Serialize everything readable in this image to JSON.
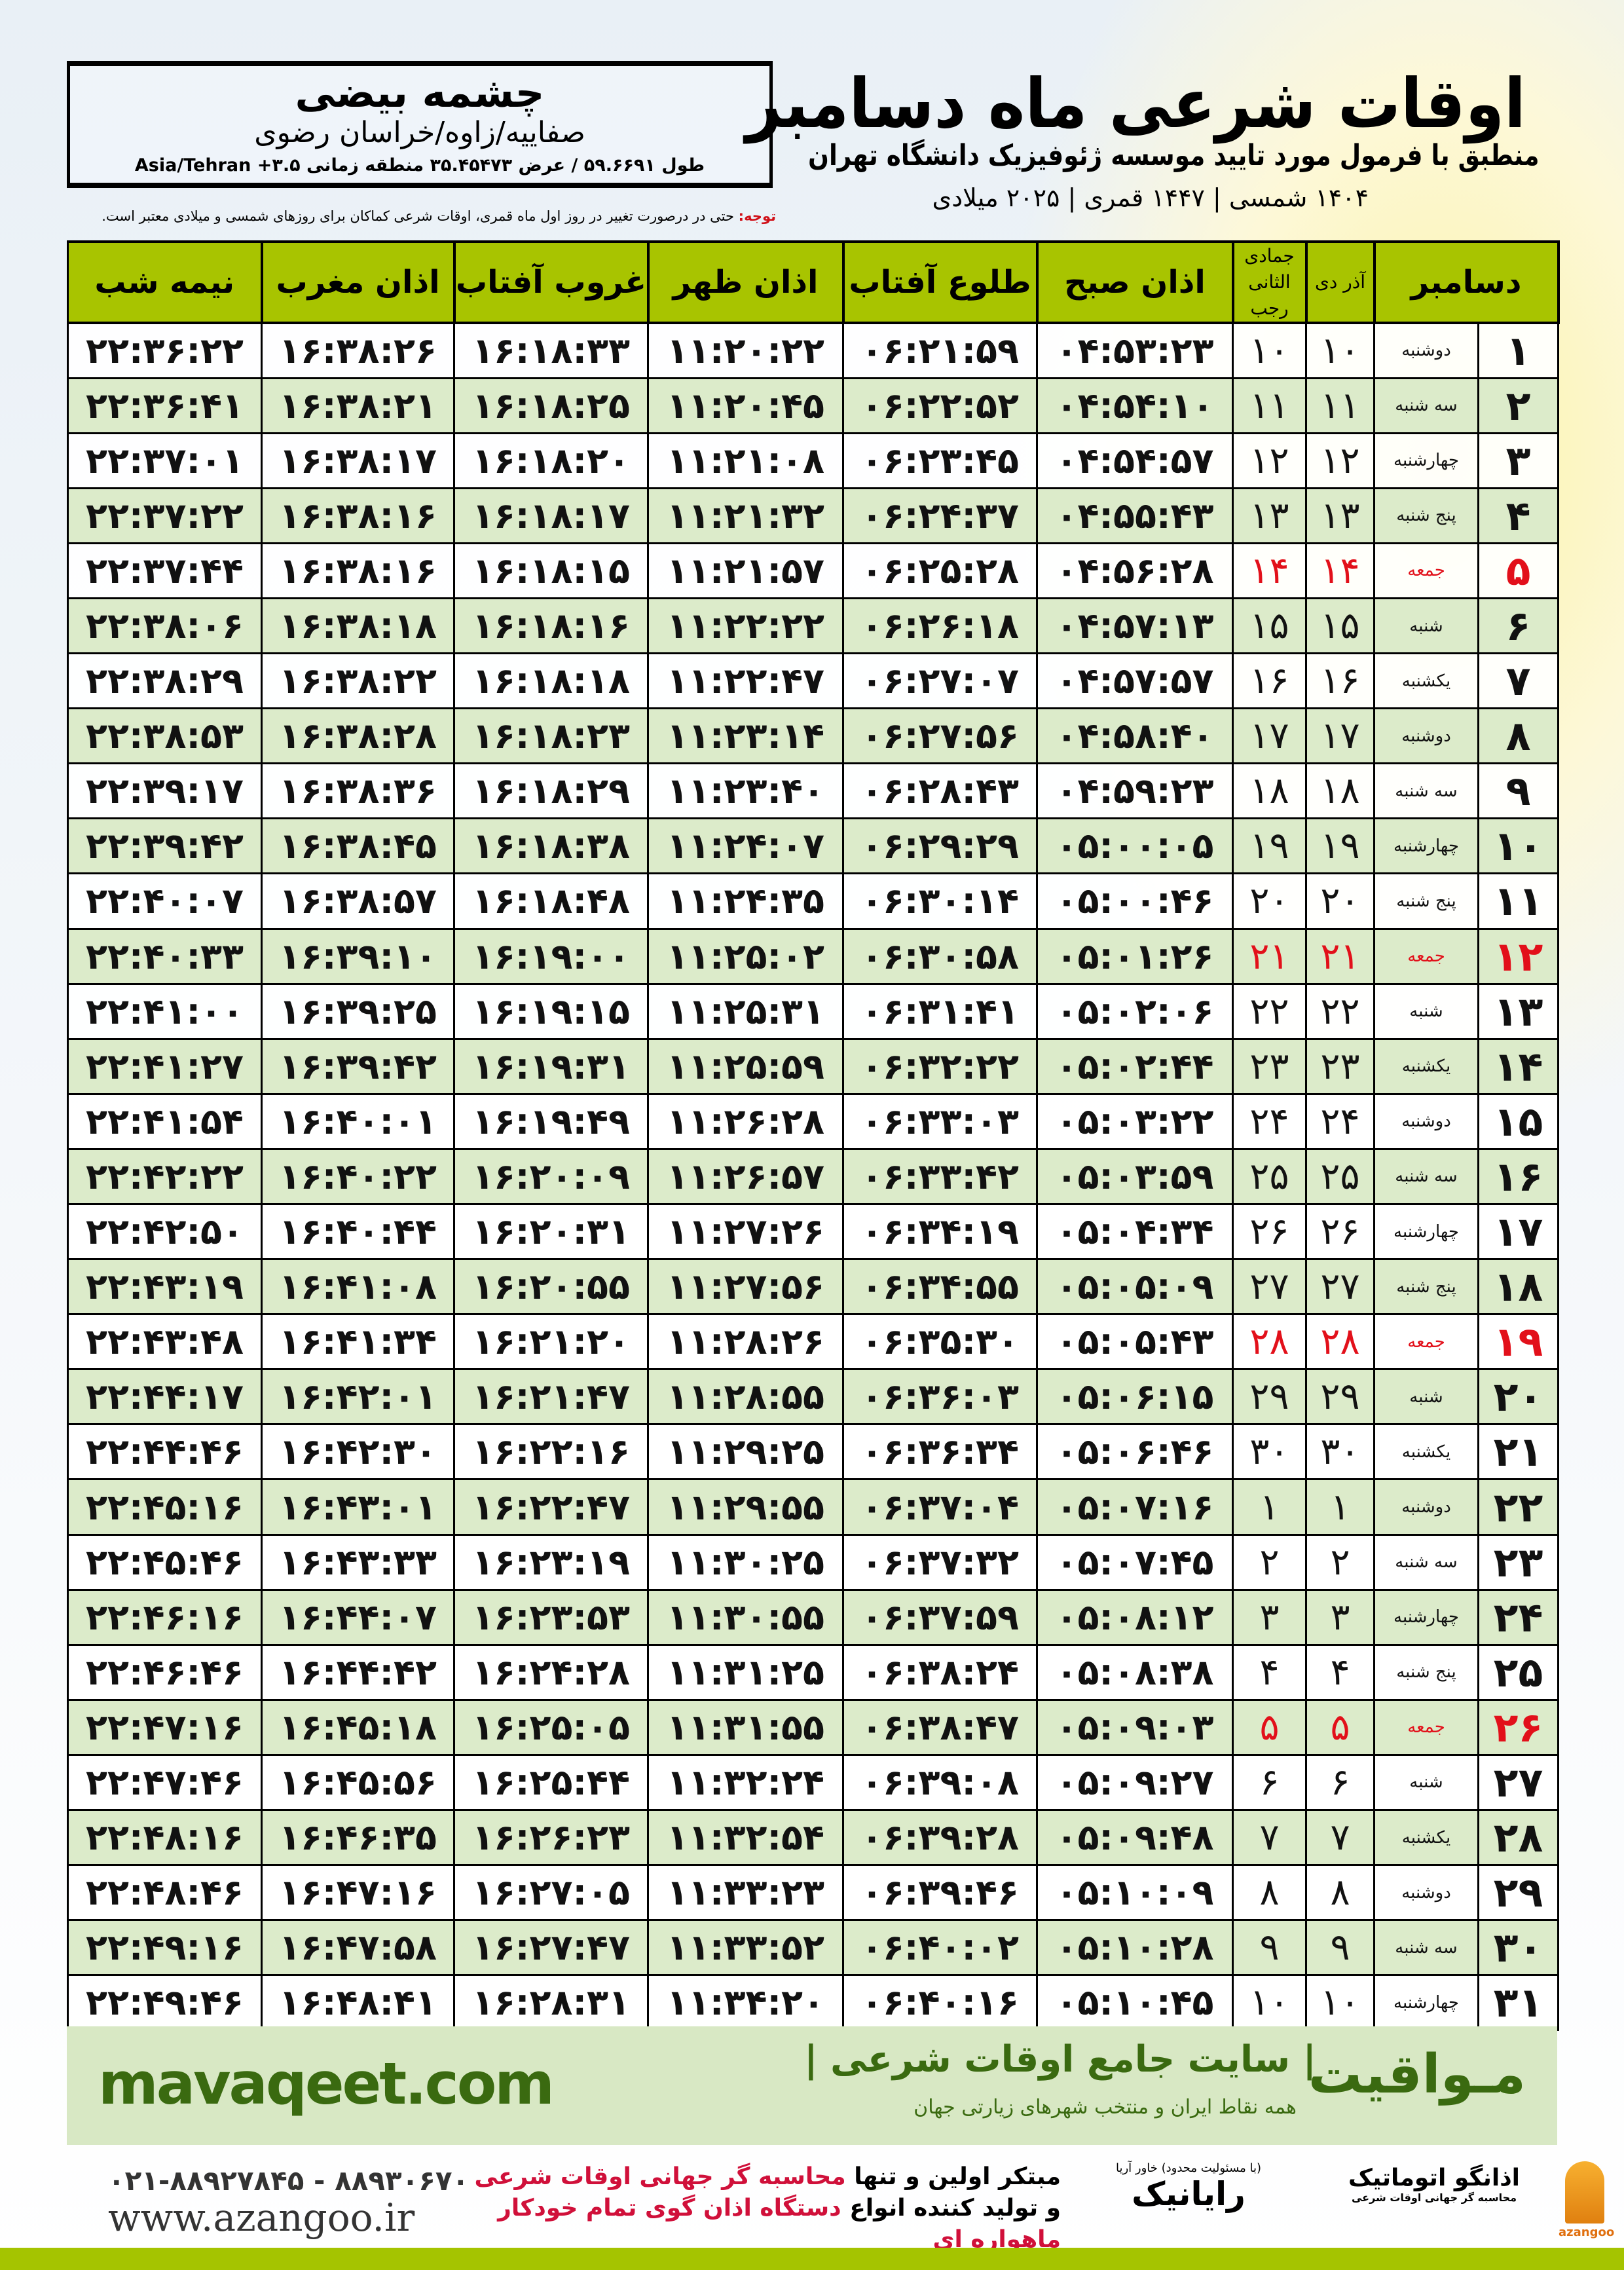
{
  "location": {
    "name": "چشمه بیضی",
    "province": "صفاییه/زاوه/خراسان رضوی",
    "coords": "طول ۵۹.۶۶۹۱ / عرض ۳۵.۴۵۴۷۳ منطقه زمانی ۳.۵+ Asia/Tehran"
  },
  "header": {
    "title": "اوقات شرعی ماه دسامبر",
    "subtitle": "منطبق با فرمول مورد تایید موسسه ژئوفیزیک دانشگاه تهران",
    "dates": "۱۴۰۴ شمسی | ۱۴۴۷ قمری | ۲۰۲۵ میلادی",
    "note_label": "توجه:",
    "note_text": " حتی در درصورت تغییر در روز اول ماه قمری، اوقات شرعی کماکان برای روزهای شمسی و میلادی معتبر است."
  },
  "columns": {
    "month": "دسامبر",
    "solar": "آذر  دی",
    "solar2": "دی",
    "hijri": "جمادی الثانی",
    "hijri2": "رجب",
    "fajr": "اذان صبح",
    "sunrise": "طلوع آفتاب",
    "dhuhr": "اذان ظهر",
    "sunset": "غروب آفتاب",
    "maghrib": "اذان مغرب",
    "midnight": "نیمه شب"
  },
  "colors": {
    "header_green": "#a8c400",
    "row_alt": "#dcebca",
    "friday_red": "#e2101a",
    "band": "#d8e8c4",
    "brand_green": "#3a6a10"
  },
  "rows": [
    [
      "۱",
      "دوشنبه",
      "۱۰",
      "۱۰",
      "۰۴:۵۳:۲۳",
      "۰۶:۲۱:۵۹",
      "۱۱:۲۰:۲۲",
      "۱۶:۱۸:۳۳",
      "۱۶:۳۸:۲۶",
      "۲۲:۳۶:۲۲"
    ],
    [
      "۲",
      "سه شنبه",
      "۱۱",
      "۱۱",
      "۰۴:۵۴:۱۰",
      "۰۶:۲۲:۵۲",
      "۱۱:۲۰:۴۵",
      "۱۶:۱۸:۲۵",
      "۱۶:۳۸:۲۱",
      "۲۲:۳۶:۴۱"
    ],
    [
      "۳",
      "چهارشنبه",
      "۱۲",
      "۱۲",
      "۰۴:۵۴:۵۷",
      "۰۶:۲۳:۴۵",
      "۱۱:۲۱:۰۸",
      "۱۶:۱۸:۲۰",
      "۱۶:۳۸:۱۷",
      "۲۲:۳۷:۰۱"
    ],
    [
      "۴",
      "پنج شنبه",
      "۱۳",
      "۱۳",
      "۰۴:۵۵:۴۳",
      "۰۶:۲۴:۳۷",
      "۱۱:۲۱:۳۲",
      "۱۶:۱۸:۱۷",
      "۱۶:۳۸:۱۶",
      "۲۲:۳۷:۲۲"
    ],
    [
      "۵",
      "جمعه",
      "۱۴",
      "۱۴",
      "۰۴:۵۶:۲۸",
      "۰۶:۲۵:۲۸",
      "۱۱:۲۱:۵۷",
      "۱۶:۱۸:۱۵",
      "۱۶:۳۸:۱۶",
      "۲۲:۳۷:۴۴"
    ],
    [
      "۶",
      "شنبه",
      "۱۵",
      "۱۵",
      "۰۴:۵۷:۱۳",
      "۰۶:۲۶:۱۸",
      "۱۱:۲۲:۲۲",
      "۱۶:۱۸:۱۶",
      "۱۶:۳۸:۱۸",
      "۲۲:۳۸:۰۶"
    ],
    [
      "۷",
      "یکشنبه",
      "۱۶",
      "۱۶",
      "۰۴:۵۷:۵۷",
      "۰۶:۲۷:۰۷",
      "۱۱:۲۲:۴۷",
      "۱۶:۱۸:۱۸",
      "۱۶:۳۸:۲۲",
      "۲۲:۳۸:۲۹"
    ],
    [
      "۸",
      "دوشنبه",
      "۱۷",
      "۱۷",
      "۰۴:۵۸:۴۰",
      "۰۶:۲۷:۵۶",
      "۱۱:۲۳:۱۴",
      "۱۶:۱۸:۲۳",
      "۱۶:۳۸:۲۸",
      "۲۲:۳۸:۵۳"
    ],
    [
      "۹",
      "سه شنبه",
      "۱۸",
      "۱۸",
      "۰۴:۵۹:۲۳",
      "۰۶:۲۸:۴۳",
      "۱۱:۲۳:۴۰",
      "۱۶:۱۸:۲۹",
      "۱۶:۳۸:۳۶",
      "۲۲:۳۹:۱۷"
    ],
    [
      "۱۰",
      "چهارشنبه",
      "۱۹",
      "۱۹",
      "۰۵:۰۰:۰۵",
      "۰۶:۲۹:۲۹",
      "۱۱:۲۴:۰۷",
      "۱۶:۱۸:۳۸",
      "۱۶:۳۸:۴۵",
      "۲۲:۳۹:۴۲"
    ],
    [
      "۱۱",
      "پنج شنبه",
      "۲۰",
      "۲۰",
      "۰۵:۰۰:۴۶",
      "۰۶:۳۰:۱۴",
      "۱۱:۲۴:۳۵",
      "۱۶:۱۸:۴۸",
      "۱۶:۳۸:۵۷",
      "۲۲:۴۰:۰۷"
    ],
    [
      "۱۲",
      "جمعه",
      "۲۱",
      "۲۱",
      "۰۵:۰۱:۲۶",
      "۰۶:۳۰:۵۸",
      "۱۱:۲۵:۰۲",
      "۱۶:۱۹:۰۰",
      "۱۶:۳۹:۱۰",
      "۲۲:۴۰:۳۳"
    ],
    [
      "۱۳",
      "شنبه",
      "۲۲",
      "۲۲",
      "۰۵:۰۲:۰۶",
      "۰۶:۳۱:۴۱",
      "۱۱:۲۵:۳۱",
      "۱۶:۱۹:۱۵",
      "۱۶:۳۹:۲۵",
      "۲۲:۴۱:۰۰"
    ],
    [
      "۱۴",
      "یکشنبه",
      "۲۳",
      "۲۳",
      "۰۵:۰۲:۴۴",
      "۰۶:۳۲:۲۲",
      "۱۱:۲۵:۵۹",
      "۱۶:۱۹:۳۱",
      "۱۶:۳۹:۴۲",
      "۲۲:۴۱:۲۷"
    ],
    [
      "۱۵",
      "دوشنبه",
      "۲۴",
      "۲۴",
      "۰۵:۰۳:۲۲",
      "۰۶:۳۳:۰۳",
      "۱۱:۲۶:۲۸",
      "۱۶:۱۹:۴۹",
      "۱۶:۴۰:۰۱",
      "۲۲:۴۱:۵۴"
    ],
    [
      "۱۶",
      "سه شنبه",
      "۲۵",
      "۲۵",
      "۰۵:۰۳:۵۹",
      "۰۶:۳۳:۴۲",
      "۱۱:۲۶:۵۷",
      "۱۶:۲۰:۰۹",
      "۱۶:۴۰:۲۲",
      "۲۲:۴۲:۲۲"
    ],
    [
      "۱۷",
      "چهارشنبه",
      "۲۶",
      "۲۶",
      "۰۵:۰۴:۳۴",
      "۰۶:۳۴:۱۹",
      "۱۱:۲۷:۲۶",
      "۱۶:۲۰:۳۱",
      "۱۶:۴۰:۴۴",
      "۲۲:۴۲:۵۰"
    ],
    [
      "۱۸",
      "پنج شنبه",
      "۲۷",
      "۲۷",
      "۰۵:۰۵:۰۹",
      "۰۶:۳۴:۵۵",
      "۱۱:۲۷:۵۶",
      "۱۶:۲۰:۵۵",
      "۱۶:۴۱:۰۸",
      "۲۲:۴۳:۱۹"
    ],
    [
      "۱۹",
      "جمعه",
      "۲۸",
      "۲۸",
      "۰۵:۰۵:۴۳",
      "۰۶:۳۵:۳۰",
      "۱۱:۲۸:۲۶",
      "۱۶:۲۱:۲۰",
      "۱۶:۴۱:۳۴",
      "۲۲:۴۳:۴۸"
    ],
    [
      "۲۰",
      "شنبه",
      "۲۹",
      "۲۹",
      "۰۵:۰۶:۱۵",
      "۰۶:۳۶:۰۳",
      "۱۱:۲۸:۵۵",
      "۱۶:۲۱:۴۷",
      "۱۶:۴۲:۰۱",
      "۲۲:۴۴:۱۷"
    ],
    [
      "۲۱",
      "یکشنبه",
      "۳۰",
      "۳۰",
      "۰۵:۰۶:۴۶",
      "۰۶:۳۶:۳۴",
      "۱۱:۲۹:۲۵",
      "۱۶:۲۲:۱۶",
      "۱۶:۴۲:۳۰",
      "۲۲:۴۴:۴۶"
    ],
    [
      "۲۲",
      "دوشنبه",
      "۱",
      "۱",
      "۰۵:۰۷:۱۶",
      "۰۶:۳۷:۰۴",
      "۱۱:۲۹:۵۵",
      "۱۶:۲۲:۴۷",
      "۱۶:۴۳:۰۱",
      "۲۲:۴۵:۱۶"
    ],
    [
      "۲۳",
      "سه شنبه",
      "۲",
      "۲",
      "۰۵:۰۷:۴۵",
      "۰۶:۳۷:۳۲",
      "۱۱:۳۰:۲۵",
      "۱۶:۲۳:۱۹",
      "۱۶:۴۳:۳۳",
      "۲۲:۴۵:۴۶"
    ],
    [
      "۲۴",
      "چهارشنبه",
      "۳",
      "۳",
      "۰۵:۰۸:۱۲",
      "۰۶:۳۷:۵۹",
      "۱۱:۳۰:۵۵",
      "۱۶:۲۳:۵۳",
      "۱۶:۴۴:۰۷",
      "۲۲:۴۶:۱۶"
    ],
    [
      "۲۵",
      "پنج شنبه",
      "۴",
      "۴",
      "۰۵:۰۸:۳۸",
      "۰۶:۳۸:۲۴",
      "۱۱:۳۱:۲۵",
      "۱۶:۲۴:۲۸",
      "۱۶:۴۴:۴۲",
      "۲۲:۴۶:۴۶"
    ],
    [
      "۲۶",
      "جمعه",
      "۵",
      "۵",
      "۰۵:۰۹:۰۳",
      "۰۶:۳۸:۴۷",
      "۱۱:۳۱:۵۵",
      "۱۶:۲۵:۰۵",
      "۱۶:۴۵:۱۸",
      "۲۲:۴۷:۱۶"
    ],
    [
      "۲۷",
      "شنبه",
      "۶",
      "۶",
      "۰۵:۰۹:۲۷",
      "۰۶:۳۹:۰۸",
      "۱۱:۳۲:۲۴",
      "۱۶:۲۵:۴۴",
      "۱۶:۴۵:۵۶",
      "۲۲:۴۷:۴۶"
    ],
    [
      "۲۸",
      "یکشنبه",
      "۷",
      "۷",
      "۰۵:۰۹:۴۸",
      "۰۶:۳۹:۲۸",
      "۱۱:۳۲:۵۴",
      "۱۶:۲۶:۲۳",
      "۱۶:۴۶:۳۵",
      "۲۲:۴۸:۱۶"
    ],
    [
      "۲۹",
      "دوشنبه",
      "۸",
      "۸",
      "۰۵:۱۰:۰۹",
      "۰۶:۳۹:۴۶",
      "۱۱:۳۳:۲۳",
      "۱۶:۲۷:۰۵",
      "۱۶:۴۷:۱۶",
      "۲۲:۴۸:۴۶"
    ],
    [
      "۳۰",
      "سه شنبه",
      "۹",
      "۹",
      "۰۵:۱۰:۲۸",
      "۰۶:۴۰:۰۲",
      "۱۱:۳۳:۵۲",
      "۱۶:۲۷:۴۷",
      "۱۶:۴۷:۵۸",
      "۲۲:۴۹:۱۶"
    ],
    [
      "۳۱",
      "چهارشنبه",
      "۱۰",
      "۱۰",
      "۰۵:۱۰:۴۵",
      "۰۶:۴۰:۱۶",
      "۱۱:۳۴:۲۰",
      "۱۶:۲۸:۳۱",
      "۱۶:۴۸:۴۱",
      "۲۲:۴۹:۴۶"
    ]
  ],
  "friday_rows": [
    "۵",
    "۱۲",
    "۱۹",
    "۲۶"
  ],
  "banner": {
    "site": "mavaqeet.com",
    "brand": "مـواقیت",
    "desc": "| سایت جامع اوقات شرعی |",
    "sub": "همه نقاط ایران و منتخب شهرهای زیارتی جهان"
  },
  "footer": {
    "phone": "۰۲۱-۸۸۹۲۷۸۴۵ - ۸۸۹۳۰۶۷۰",
    "web": "www.azangoo.ir",
    "promo1_a": "مبتکر اولین و تنها ",
    "promo1_b": "محاسبه گر جهانی اوقات شرعی",
    "promo2_a": "و تولید کننده انواع ",
    "promo2_b": "دستگاه اذان گوی تمام خودکار ماهواره ای",
    "logo1": "رایانیک",
    "logo1_small": "(با مسئولیت محدود) خاور آریا",
    "logo2": "اذانگو اتوماتیک",
    "logo2_small": "محاسبه گر جهانی اوقات شرعی",
    "logo2_en": "azangoo"
  }
}
